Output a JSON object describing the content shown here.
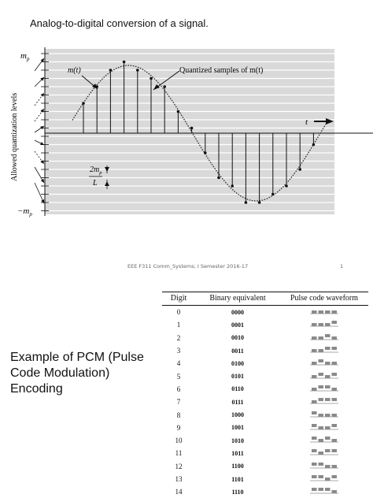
{
  "slide": {
    "title": "Analog-to-digital conversion of a signal.",
    "footer_left": "EEE F311 Comm_Systems; I Semester 2016-17",
    "footer_right": "1"
  },
  "figure": {
    "y_top_label": "m",
    "y_top_sub": "p",
    "y_bottom_label": "−m",
    "y_bottom_sub": "p",
    "y_axis_label": "Allowed quantization levels",
    "signal_label": "m(t)",
    "samples_label": "Quantized samples of m(t)",
    "time_label": "t",
    "step_numerator": "2m",
    "step_numerator_sub": "p",
    "step_denominator": "L",
    "colors": {
      "background": "#d9d9d9",
      "gridline": "#ffffff",
      "curve": "#222222"
    }
  },
  "caption": {
    "line1": "Example of PCM (Pulse",
    "line2": "Code Modulation)",
    "line3": "Encoding"
  },
  "table": {
    "headers": [
      "Digit",
      "Binary equivalent",
      "Pulse code waveform"
    ],
    "rows": [
      {
        "digit": "0",
        "binary": "0000"
      },
      {
        "digit": "1",
        "binary": "0001"
      },
      {
        "digit": "2",
        "binary": "0010"
      },
      {
        "digit": "3",
        "binary": "0011"
      },
      {
        "digit": "4",
        "binary": "0100"
      },
      {
        "digit": "5",
        "binary": "0101"
      },
      {
        "digit": "6",
        "binary": "0110"
      },
      {
        "digit": "7",
        "binary": "0111"
      },
      {
        "digit": "8",
        "binary": "1000"
      },
      {
        "digit": "9",
        "binary": "1001"
      },
      {
        "digit": "10",
        "binary": "1010"
      },
      {
        "digit": "11",
        "binary": "1011"
      },
      {
        "digit": "12",
        "binary": "1100"
      },
      {
        "digit": "13",
        "binary": "1101"
      },
      {
        "digit": "14",
        "binary": "1110"
      }
    ]
  }
}
